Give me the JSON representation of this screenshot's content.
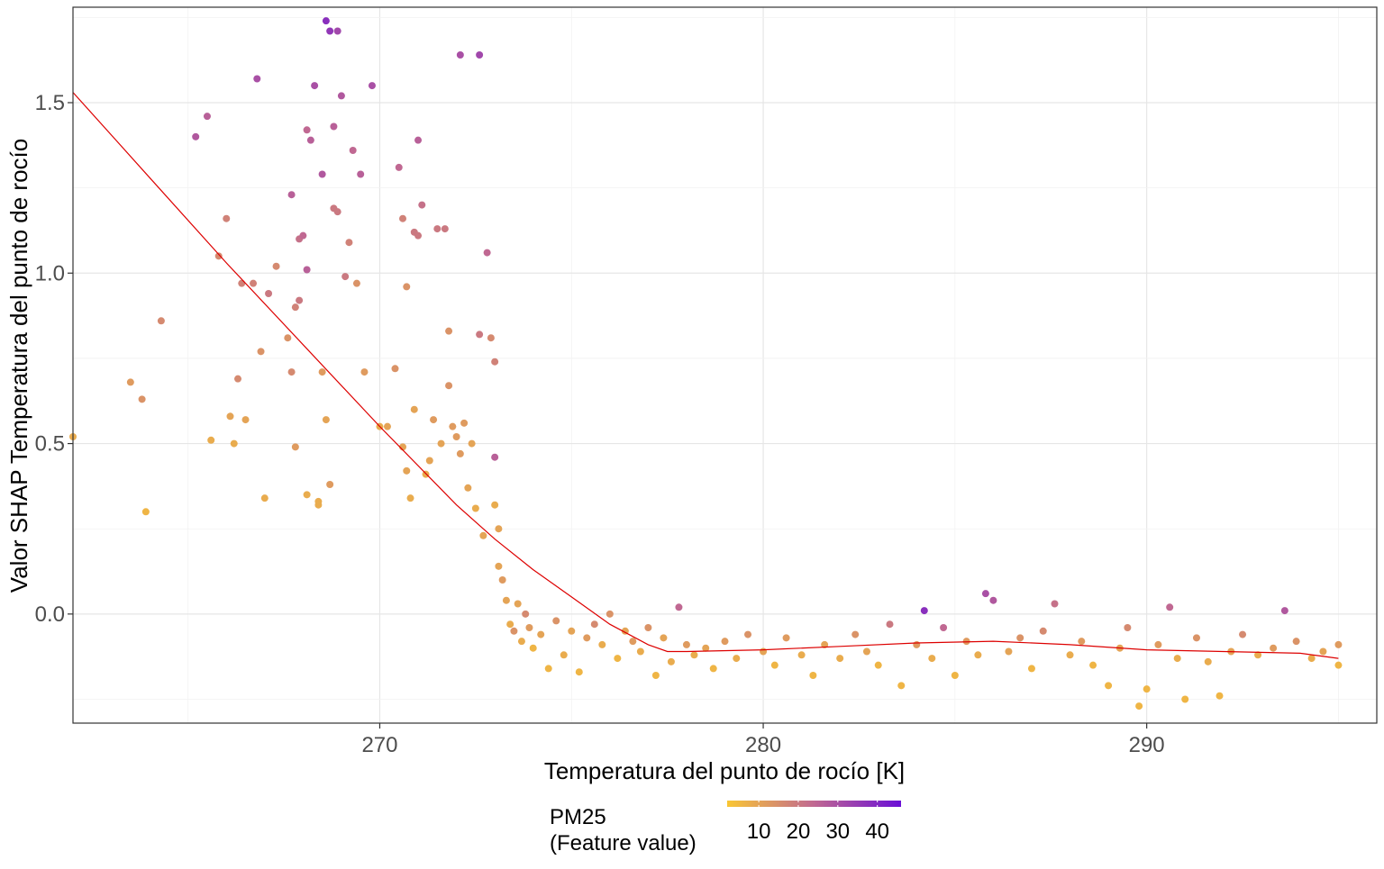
{
  "chart_data": {
    "type": "scatter",
    "title": "",
    "xlabel": "Temperatura del punto de rocío [K]",
    "ylabel": "Valor SHAP Temperatura del punto de rocío",
    "xlim": [
      262,
      296
    ],
    "ylim": [
      -0.32,
      1.78
    ],
    "x_ticks": [
      270,
      280,
      290
    ],
    "x_tick_labels": [
      "270",
      "280",
      "290"
    ],
    "y_ticks": [
      0.0,
      0.5,
      1.0,
      1.5
    ],
    "y_tick_labels": [
      "0.0",
      "0.5",
      "1.0",
      "1.5"
    ],
    "grid": true,
    "color_scale": {
      "title_line1": "PM25",
      "title_line2": "(Feature value)",
      "breaks": [
        10,
        20,
        30,
        40
      ],
      "break_labels": [
        "10",
        "20",
        "30",
        "40"
      ],
      "range": [
        2,
        46
      ],
      "low_color": "#f9c634",
      "mid_color": "#c06892",
      "high_color": "#6a0fd6"
    },
    "smooth_line": {
      "color": "#dd0000",
      "x": [
        262.0,
        264.0,
        266.0,
        268.0,
        270.0,
        272.0,
        273.0,
        274.0,
        275.0,
        276.0,
        277.0,
        277.5,
        278.0,
        280.0,
        282.0,
        284.0,
        286.0,
        288.0,
        290.0,
        292.0,
        294.0,
        295.0
      ],
      "y": [
        1.53,
        1.28,
        1.03,
        0.79,
        0.55,
        0.32,
        0.22,
        0.13,
        0.05,
        -0.03,
        -0.09,
        -0.11,
        -0.11,
        -0.105,
        -0.095,
        -0.085,
        -0.08,
        -0.09,
        -0.105,
        -0.11,
        -0.115,
        -0.13
      ]
    },
    "series": [
      {
        "x": [
          262.0,
          263.5,
          263.8,
          263.9,
          264.3,
          265.2,
          265.5,
          265.6,
          265.8,
          266.0,
          266.1,
          266.2,
          266.3,
          266.4,
          266.5,
          266.7,
          266.8,
          266.9,
          267.0,
          267.1,
          267.3,
          267.6,
          267.7,
          267.7,
          267.8,
          267.8,
          267.9,
          267.9,
          268.0,
          268.1,
          268.1,
          268.1,
          268.2,
          268.3,
          268.4,
          268.4,
          268.5,
          268.5,
          268.6,
          268.7,
          268.8,
          268.8,
          268.9,
          268.9,
          269.0,
          269.1,
          269.2,
          269.3,
          269.4,
          269.5,
          269.6,
          269.8,
          270.0,
          270.2,
          270.4,
          270.5,
          270.6,
          270.6,
          270.7,
          270.7,
          270.8,
          270.9,
          270.9,
          271.0,
          271.0,
          271.1,
          271.2,
          271.3,
          271.4,
          271.5,
          271.6,
          271.7,
          271.8,
          271.8,
          271.9,
          272.0,
          272.1,
          272.2,
          272.3,
          272.4,
          272.5,
          272.6,
          272.6,
          272.7,
          272.8,
          272.9,
          273.0,
          273.0,
          273.1
        ],
        "y": [
          0.52,
          0.68,
          0.63,
          0.3,
          0.86,
          1.4,
          1.46,
          0.51,
          1.05,
          1.16,
          0.58,
          0.5,
          0.69,
          0.97,
          0.57,
          0.97,
          1.57,
          0.77,
          0.34,
          0.94,
          1.02,
          0.81,
          0.71,
          1.23,
          0.49,
          0.9,
          1.1,
          0.92,
          1.11,
          0.35,
          1.01,
          1.42,
          1.39,
          1.55,
          0.33,
          0.32,
          1.29,
          0.71,
          0.57,
          0.38,
          1.19,
          1.43,
          1.18,
          1.71,
          1.52,
          0.99,
          1.09,
          1.36,
          0.97,
          1.29,
          0.71,
          1.55,
          0.55,
          0.55,
          0.72,
          1.31,
          0.49,
          1.16,
          0.42,
          0.96,
          0.34,
          1.12,
          0.6,
          1.39,
          1.11,
          1.2,
          0.41,
          0.45,
          0.57,
          1.13,
          0.5,
          1.13,
          0.67,
          0.83,
          0.55,
          0.52,
          0.47,
          0.56,
          0.37,
          0.5,
          0.31,
          1.64,
          0.82,
          0.23,
          1.06,
          0.81,
          0.74,
          0.32,
          0.25
        ],
        "pm25": [
          8,
          12,
          14,
          6,
          16,
          28,
          26,
          8,
          16,
          18,
          10,
          8,
          16,
          18,
          10,
          18,
          30,
          14,
          8,
          20,
          16,
          14,
          16,
          26,
          12,
          18,
          22,
          20,
          24,
          8,
          26,
          24,
          26,
          30,
          8,
          8,
          28,
          12,
          10,
          12,
          20,
          26,
          20,
          32,
          28,
          20,
          18,
          24,
          14,
          26,
          12,
          30,
          8,
          10,
          14,
          24,
          10,
          18,
          10,
          14,
          8,
          20,
          10,
          26,
          20,
          22,
          8,
          10,
          12,
          20,
          10,
          20,
          14,
          14,
          12,
          12,
          12,
          12,
          10,
          10,
          8,
          32,
          20,
          10,
          24,
          16,
          18,
          8,
          10
        ]
      },
      {
        "x": [
          268.6,
          268.7,
          272.1,
          273.0,
          273.1,
          273.2,
          273.3,
          273.4,
          273.5,
          273.6,
          273.7,
          273.8,
          273.9,
          274.0,
          274.2,
          274.4,
          274.6,
          274.8,
          275.0,
          275.2,
          275.4,
          275.6,
          275.8,
          276.0,
          276.2,
          276.4,
          276.6,
          276.8,
          277.0,
          277.2,
          277.4,
          277.6,
          277.8,
          278.0,
          278.2,
          278.5,
          278.7,
          279.0,
          279.3,
          279.6,
          280.0,
          280.3,
          280.6,
          281.0,
          281.3,
          281.6,
          282.0,
          282.4,
          282.7,
          283.0,
          283.3,
          283.6,
          284.0,
          284.2,
          284.4,
          284.7,
          285.0,
          285.3,
          285.6,
          285.8,
          286.0,
          286.4,
          286.7,
          287.0,
          287.3,
          287.6,
          288.0,
          288.3,
          288.6,
          289.0,
          289.3,
          289.5,
          289.8,
          290.0,
          290.3,
          290.6,
          290.8,
          291.0,
          291.3,
          291.6,
          291.9,
          292.2,
          292.5,
          292.9,
          293.3,
          293.6,
          293.9,
          294.3,
          294.6,
          295.0,
          295.0
        ],
        "y": [
          1.74,
          1.71,
          1.64,
          0.46,
          0.14,
          0.1,
          0.04,
          -0.03,
          -0.05,
          0.03,
          -0.08,
          0.0,
          -0.04,
          -0.1,
          -0.06,
          -0.16,
          -0.02,
          -0.12,
          -0.05,
          -0.17,
          -0.07,
          -0.03,
          -0.09,
          0.0,
          -0.13,
          -0.05,
          -0.08,
          -0.11,
          -0.04,
          -0.18,
          -0.07,
          -0.14,
          0.02,
          -0.09,
          -0.12,
          -0.1,
          -0.16,
          -0.08,
          -0.13,
          -0.06,
          -0.11,
          -0.15,
          -0.07,
          -0.12,
          -0.18,
          -0.09,
          -0.13,
          -0.06,
          -0.11,
          -0.15,
          -0.03,
          -0.21,
          -0.09,
          0.01,
          -0.13,
          -0.04,
          -0.18,
          -0.08,
          -0.12,
          0.06,
          0.04,
          -0.11,
          -0.07,
          -0.16,
          -0.05,
          0.03,
          -0.12,
          -0.08,
          -0.15,
          -0.21,
          -0.1,
          -0.04,
          -0.27,
          -0.22,
          -0.09,
          0.02,
          -0.13,
          -0.25,
          -0.07,
          -0.14,
          -0.24,
          -0.11,
          -0.06,
          -0.12,
          -0.1,
          0.01,
          -0.08,
          -0.13,
          -0.11,
          -0.09,
          -0.15
        ],
        "pm25": [
          38,
          36,
          30,
          26,
          10,
          12,
          10,
          8,
          14,
          10,
          8,
          16,
          12,
          6,
          10,
          6,
          14,
          8,
          10,
          6,
          12,
          16,
          8,
          14,
          6,
          10,
          12,
          8,
          14,
          6,
          10,
          8,
          24,
          12,
          8,
          10,
          6,
          12,
          8,
          14,
          10,
          6,
          12,
          8,
          6,
          10,
          8,
          14,
          10,
          6,
          20,
          6,
          12,
          38,
          8,
          24,
          6,
          12,
          8,
          30,
          28,
          10,
          14,
          6,
          16,
          22,
          8,
          12,
          6,
          6,
          10,
          16,
          6,
          6,
          12,
          24,
          8,
          6,
          14,
          8,
          6,
          10,
          16,
          8,
          12,
          28,
          14,
          8,
          10,
          12,
          6
        ]
      }
    ]
  }
}
